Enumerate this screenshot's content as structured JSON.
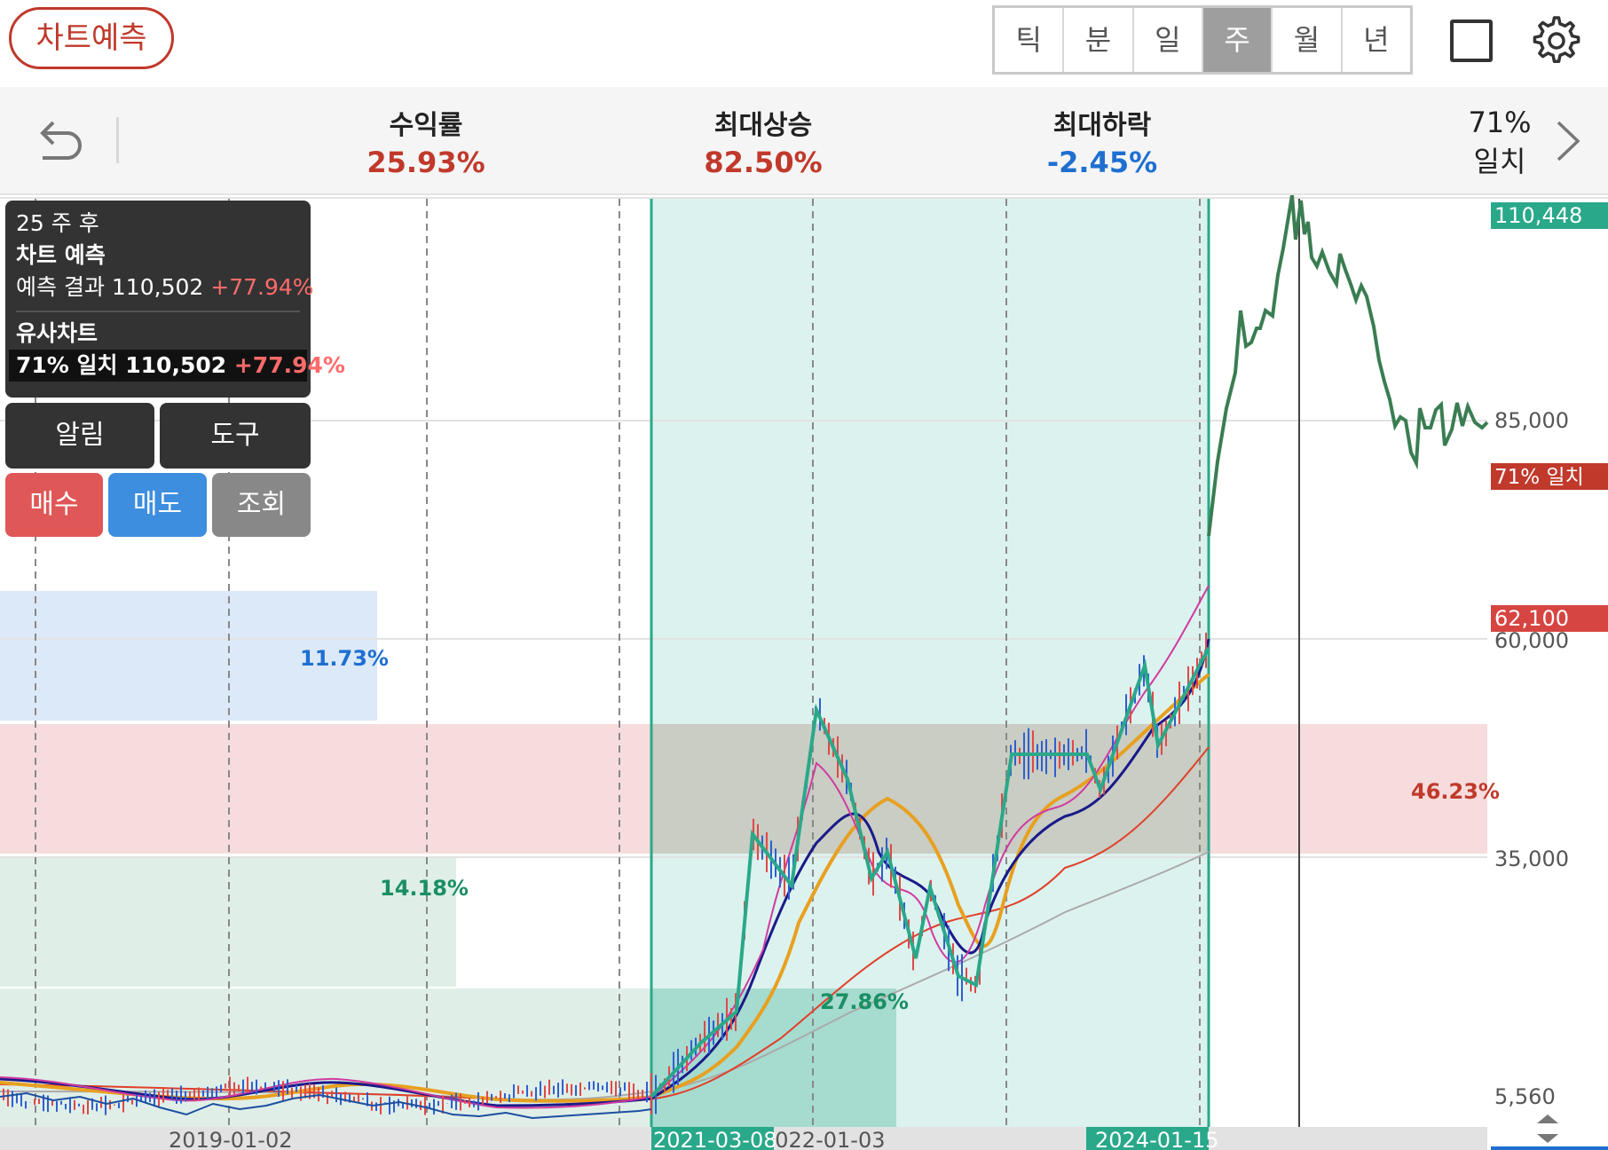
{
  "topbar": {
    "predict_button": "차트예측",
    "periods": [
      "틱",
      "분",
      "일",
      "주",
      "월",
      "년"
    ],
    "active_period": "주"
  },
  "stats": {
    "return_label": "수익률",
    "return_value": "25.93%",
    "max_rise_label": "최대상승",
    "max_rise_value": "82.50%",
    "max_fall_label": "최대하락",
    "max_fall_value": "-2.45%",
    "match_percent": "71%",
    "match_label": "일치"
  },
  "colors": {
    "red": "#c0392b",
    "blue": "#1e6fd0",
    "green": "#1a8f63",
    "teal": "#2aa88a",
    "price_line": "#3a7d52"
  },
  "info": {
    "weeks_after": "25 주 후",
    "title": "차트 예측",
    "result_label": "예측 결과",
    "result_value": "110,502",
    "result_change": "+77.94%",
    "similar_title": "유사차트",
    "similar_match": "71% 일치",
    "similar_value": "110,502",
    "similar_change": "+77.94%"
  },
  "buttons": {
    "alarm": "알림",
    "tool": "도구",
    "buy": "매수",
    "sell": "매도",
    "view": "조회"
  },
  "legend_behind": [
    "5",
    "10",
    "20",
    "60",
    "120"
  ],
  "chart_data": {
    "type": "line",
    "y_axis_labels": [
      "110,448",
      "85,000",
      "71% 일치",
      "62,100",
      "60,000",
      "35,000",
      "5,560"
    ],
    "x_axis_labels": [
      "2019-01-02",
      "2021-03-08",
      "2022-01-03",
      "2024-01-15"
    ],
    "percent_annotations": [
      "11.73%",
      "46.23%",
      "14.18%",
      "27.86%"
    ],
    "top_price": "110,448",
    "current_price": "62,100",
    "match_tag": "71% 일치",
    "ylim": [
      5560,
      110448
    ],
    "price_series": [
      {
        "x": "2017-11",
        "y": 13600
      },
      {
        "x": "2018-03",
        "y": 12600
      },
      {
        "x": "2018-08",
        "y": 11200
      },
      {
        "x": "2019-01",
        "y": 9800
      },
      {
        "x": "2019-05",
        "y": 10500
      },
      {
        "x": "2019-09",
        "y": 11800
      },
      {
        "x": "2019-12",
        "y": 10200
      },
      {
        "x": "2020-03",
        "y": 7500
      },
      {
        "x": "2020-06",
        "y": 6700
      },
      {
        "x": "2020-11",
        "y": 6500
      },
      {
        "x": "2021-03",
        "y": 7600
      },
      {
        "x": "2021-07",
        "y": 12500
      },
      {
        "x": "2021-10",
        "y": 22500
      },
      {
        "x": "2021-12",
        "y": 35000
      },
      {
        "x": "2022-02",
        "y": 30000
      },
      {
        "x": "2022-06",
        "y": 48000
      },
      {
        "x": "2022-10",
        "y": 32000
      },
      {
        "x": "2023-01",
        "y": 18000
      },
      {
        "x": "2023-04",
        "y": 23000
      },
      {
        "x": "2023-07",
        "y": 15000
      },
      {
        "x": "2023-10",
        "y": 42000
      },
      {
        "x": "2024-01",
        "y": 44500
      },
      {
        "x": "2024-04",
        "y": 37500
      },
      {
        "x": "2024-08",
        "y": 53000
      },
      {
        "x": "2024-12",
        "y": 61500
      }
    ],
    "similar_series": [
      {
        "x": "2025-01",
        "y": 62100
      },
      {
        "x": "2025-03",
        "y": 78000
      },
      {
        "x": "2025-05",
        "y": 85000
      },
      {
        "x": "2025-07",
        "y": 95000
      },
      {
        "x": "2025-09",
        "y": 110448
      },
      {
        "x": "2025-11",
        "y": 102000
      },
      {
        "x": "2026-01",
        "y": 94000
      },
      {
        "x": "2026-03",
        "y": 86000
      },
      {
        "x": "2026-05",
        "y": 82000
      },
      {
        "x": "2026-07",
        "y": 84000
      },
      {
        "x": "2026-09",
        "y": 80000
      },
      {
        "x": "2026-10",
        "y": 78000
      }
    ]
  }
}
